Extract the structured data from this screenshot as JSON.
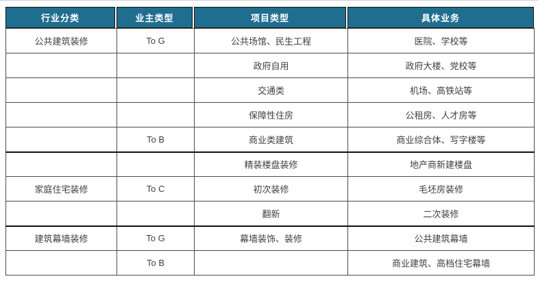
{
  "chart_data": {
    "type": "table",
    "columns": [
      "行业分类",
      "业主类型",
      "项目类型",
      "具体业务"
    ],
    "rows": [
      {
        "industry": "公共建筑装修",
        "owner": "To G",
        "project": "公共场馆、民生工程",
        "business": "医院、学校等",
        "section_start": false
      },
      {
        "industry": "",
        "owner": "",
        "project": "政府自用",
        "business": "政府大楼、党校等",
        "section_start": false
      },
      {
        "industry": "",
        "owner": "",
        "project": "交通类",
        "business": "机场、高铁站等",
        "section_start": false
      },
      {
        "industry": "",
        "owner": "",
        "project": "保障性住房",
        "business": "公租房、人才房等",
        "section_start": false
      },
      {
        "industry": "",
        "owner": "To B",
        "project": "商业类建筑",
        "business": "商业综合体、写字楼等",
        "section_start": false
      },
      {
        "industry": "",
        "owner": "",
        "project": "精装楼盘装修",
        "business": "地产商新建楼盘",
        "section_start": true
      },
      {
        "industry": "家庭住宅装修",
        "owner": "To C",
        "project": "初次装修",
        "business": "毛坯房装修",
        "section_start": false
      },
      {
        "industry": "",
        "owner": "",
        "project": "翻新",
        "business": "二次装修",
        "section_start": false
      },
      {
        "industry": "建筑幕墙装修",
        "owner": "To G",
        "project": "幕墙装饰、装修",
        "business": "公共建筑幕墙",
        "section_start": true
      },
      {
        "industry": "",
        "owner": "To B",
        "project": "",
        "business": "商业建筑、高档住宅幕墙",
        "section_start": false
      }
    ]
  },
  "colors": {
    "header_bg": "#1F6E8F",
    "header_text": "#FFFFFF",
    "body_text": "#404040",
    "grid_line": "#4A4A4A",
    "section_line": "#111111",
    "page_bg": "#FFFFFF",
    "hairline": "#CFCFCF"
  }
}
